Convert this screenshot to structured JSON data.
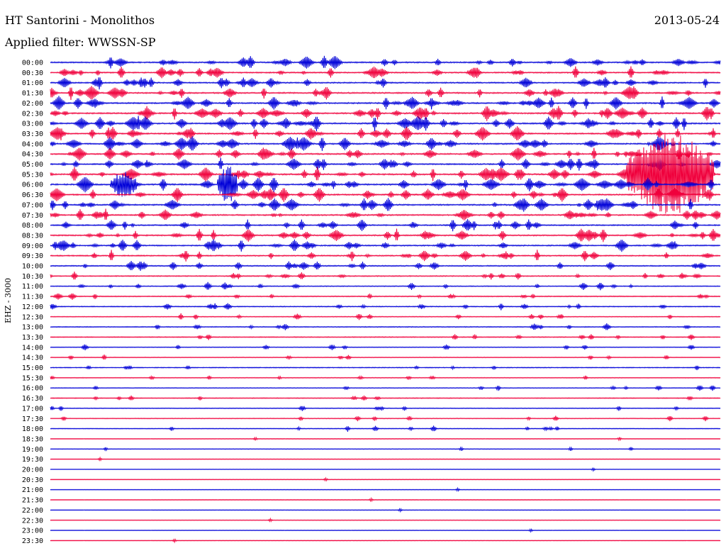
{
  "header": {
    "station": "HT Santorini - Monolithos",
    "date": "2013-05-24",
    "filter_label": "Applied filter: WWSSN-SP"
  },
  "chart_data": {
    "type": "helicorder",
    "channel_label": "EHZ - 3000",
    "trace_colors": [
      "#0000d8",
      "#f0003c"
    ],
    "time_labels": [
      "00:00",
      "00:30",
      "01:00",
      "01:30",
      "02:00",
      "02:30",
      "03:00",
      "03:30",
      "04:00",
      "04:30",
      "05:00",
      "05:30",
      "06:00",
      "06:30",
      "07:00",
      "07:30",
      "08:00",
      "08:30",
      "09:00",
      "09:30",
      "10:00",
      "10:30",
      "11:00",
      "11:30",
      "12:00",
      "12:30",
      "13:00",
      "13:30",
      "14:00",
      "14:30",
      "15:00",
      "15:30",
      "16:00",
      "16:30",
      "17:00",
      "17:30",
      "18:00",
      "18:30",
      "19:00",
      "19:30",
      "20:00",
      "20:30",
      "21:00",
      "21:30",
      "22:00",
      "22:30",
      "23:00",
      "23:30"
    ],
    "activity": [
      0.75,
      0.7,
      0.75,
      0.8,
      0.85,
      0.9,
      0.9,
      0.85,
      0.85,
      0.8,
      0.75,
      0.9,
      0.95,
      0.85,
      0.8,
      0.75,
      0.7,
      0.75,
      0.7,
      0.65,
      0.5,
      0.45,
      0.4,
      0.35,
      0.35,
      0.3,
      0.3,
      0.25,
      0.25,
      0.2,
      0.2,
      0.2,
      0.22,
      0.2,
      0.2,
      0.22,
      0.25,
      0.05,
      0.1,
      0.02,
      0.02,
      0.02,
      0.02,
      0.02,
      0.02,
      0.02,
      0.02,
      0.02
    ],
    "major_events": [
      {
        "label_index": 11,
        "start": 0.86,
        "end": 0.99,
        "amplitude": 58
      },
      {
        "label_index": 12,
        "start": 0.25,
        "end": 0.28,
        "amplitude": 28
      },
      {
        "label_index": 12,
        "start": 0.09,
        "end": 0.13,
        "amplitude": 18
      }
    ]
  }
}
